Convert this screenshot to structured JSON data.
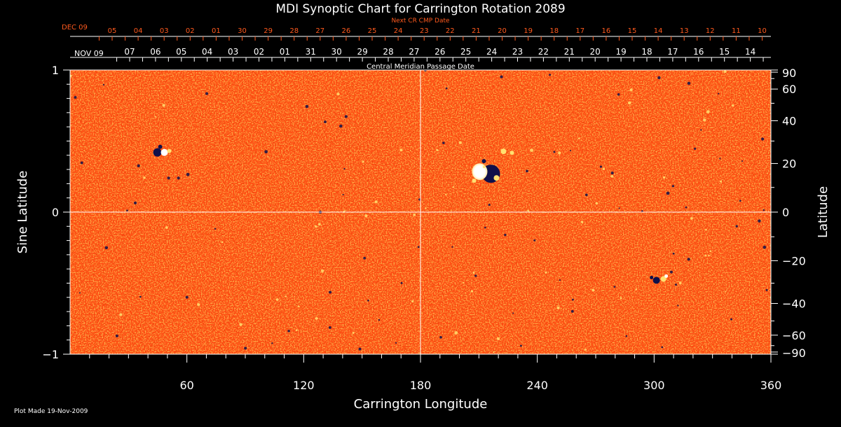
{
  "chart_data": {
    "type": "heatmap",
    "title": "MDI Synoptic Chart for Carrington Rotation 2089",
    "xlabel": "Carrington Longitude",
    "ylabel_left": "Sine Latitude",
    "ylabel_right": "Latitude",
    "xlim": [
      0,
      360
    ],
    "ylim": [
      -1,
      1
    ],
    "x_ticks": [
      60,
      120,
      180,
      240,
      300,
      360
    ],
    "y_left_ticks": [
      {
        "value": 1,
        "label": "1"
      },
      {
        "value": 0,
        "label": "0"
      },
      {
        "value": -1,
        "label": "−1"
      }
    ],
    "y_right_ticks": [
      {
        "value": 90,
        "label": "90"
      },
      {
        "value": 60,
        "label": "60"
      },
      {
        "value": 40,
        "label": "40"
      },
      {
        "value": 20,
        "label": "20"
      },
      {
        "value": 0,
        "label": "0"
      },
      {
        "value": -20,
        "label": "−20"
      },
      {
        "value": -40,
        "label": "−40"
      },
      {
        "value": -60,
        "label": "−60"
      },
      {
        "value": -90,
        "label": "−90"
      }
    ],
    "grid_lines": {
      "x": [
        180
      ],
      "y": [
        0
      ]
    },
    "top_axis_cmp": {
      "label": "Central Meridian Passage Date",
      "month_label": "NOV 09",
      "dates": [
        "07",
        "06",
        "05",
        "04",
        "03",
        "02",
        "01",
        "31",
        "30",
        "29",
        "28",
        "27",
        "26",
        "25",
        "24",
        "23",
        "22",
        "21",
        "20",
        "19",
        "18",
        "17",
        "16",
        "15",
        "14"
      ]
    },
    "top_axis_next_cmp": {
      "label": "Next CR CMP Date",
      "month_label": "DEC 09",
      "dates": [
        "05",
        "04",
        "03",
        "02",
        "01",
        "30",
        "29",
        "28",
        "27",
        "26",
        "25",
        "24",
        "23",
        "22",
        "21",
        "20",
        "19",
        "18",
        "17",
        "16",
        "15",
        "14",
        "13",
        "12",
        "11",
        "10"
      ]
    },
    "features": [
      {
        "name": "active-region-a",
        "longitude": 214,
        "sine_latitude": 0.27
      },
      {
        "name": "active-region-b",
        "longitude": 47,
        "sine_latitude": 0.42
      },
      {
        "name": "active-region-c",
        "longitude": 303,
        "sine_latitude": -0.48
      }
    ],
    "colors": {
      "background": "#ff5016",
      "bright": "#ffe070",
      "positive": "#ffffff",
      "negative": "#10104a",
      "next_cmp_text": "#ff5a1e"
    }
  },
  "footer": {
    "plot_made": "Plot Made 19-Nov-2009"
  }
}
